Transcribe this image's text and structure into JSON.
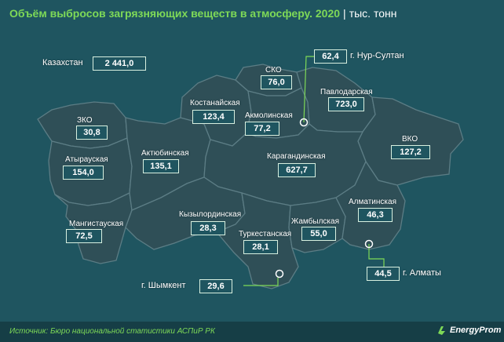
{
  "title": {
    "main": "Объём выбросов загрязняющих веществ в атмосферу. 2020",
    "separator": "|",
    "unit": "тыс. тонн"
  },
  "total": {
    "label": "Казахстан",
    "value": "2 441,0"
  },
  "regions": [
    {
      "id": "zko",
      "label": "ЗКО",
      "value": "30,8"
    },
    {
      "id": "atyrau",
      "label": "Атырауская",
      "value": "154,0"
    },
    {
      "id": "mangistau",
      "label": "Мангистауская",
      "value": "72,5"
    },
    {
      "id": "aktobe",
      "label": "Актюбинская",
      "value": "135,1"
    },
    {
      "id": "kostanay",
      "label": "Костанайская",
      "value": "123,4"
    },
    {
      "id": "sko",
      "label": "СКО",
      "value": "76,0"
    },
    {
      "id": "akmola",
      "label": "Акмолинская",
      "value": "77,2"
    },
    {
      "id": "pavlodar",
      "label": "Павлодарская",
      "value": "723,0"
    },
    {
      "id": "vko",
      "label": "ВКО",
      "value": "127,2"
    },
    {
      "id": "karaganda",
      "label": "Карагандинская",
      "value": "627,7"
    },
    {
      "id": "kyzylorda",
      "label": "Кызылординская",
      "value": "28,3"
    },
    {
      "id": "turkestan",
      "label": "Туркестанская",
      "value": "28,1"
    },
    {
      "id": "zhambyl",
      "label": "Жамбылская",
      "value": "55,0"
    },
    {
      "id": "almaty_region",
      "label": "Алматинская",
      "value": "46,3"
    }
  ],
  "cities": [
    {
      "id": "nursultan",
      "label": "г. Нур-Султан",
      "value": "62,4"
    },
    {
      "id": "almaty",
      "label": "г. Алматы",
      "value": "44,5"
    },
    {
      "id": "shymkent",
      "label": "г. Шымкент",
      "value": "29,6"
    }
  ],
  "source": "Источник: Бюро национальной статистики АСПиР РК",
  "logo": {
    "text": "EnergyProm"
  },
  "colors": {
    "background": "#1f5560",
    "region_fill": "#2f4f57",
    "accent": "#7ed957"
  }
}
